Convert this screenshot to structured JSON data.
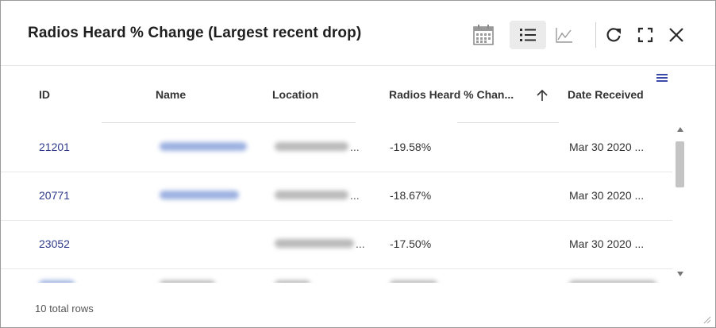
{
  "window": {
    "title": "Radios Heard % Change (Largest recent drop)"
  },
  "toolbar": {
    "calendar_icon": "calendar-icon",
    "list_icon": "list-view-icon",
    "chart_icon": "line-chart-icon",
    "refresh_icon": "refresh-icon",
    "fullscreen_icon": "fullscreen-icon",
    "close_icon": "close-icon"
  },
  "table": {
    "columns": [
      "ID",
      "Name",
      "Location",
      "Radios Heard % Chan...",
      "Date Received"
    ],
    "sort": {
      "column": "Radios Heard % Chan...",
      "direction": "ascending"
    },
    "rows": [
      {
        "id": "21201",
        "name": "",
        "location": "",
        "radios_heard_change": "-19.58%",
        "date_received": "Mar 30 2020 ..."
      },
      {
        "id": "20771",
        "name": "",
        "location": "",
        "radios_heard_change": "-18.67%",
        "date_received": "Mar 30 2020 ..."
      },
      {
        "id": "23052",
        "name": "",
        "location": "",
        "radios_heard_change": "-17.50%",
        "date_received": "Mar 30 2020 ..."
      }
    ],
    "total_rows_label": "10 total rows"
  },
  "colors": {
    "id_link": "#2e3a8c",
    "accent": "#3b4aa8",
    "active_button_bg": "#ebebeb"
  }
}
